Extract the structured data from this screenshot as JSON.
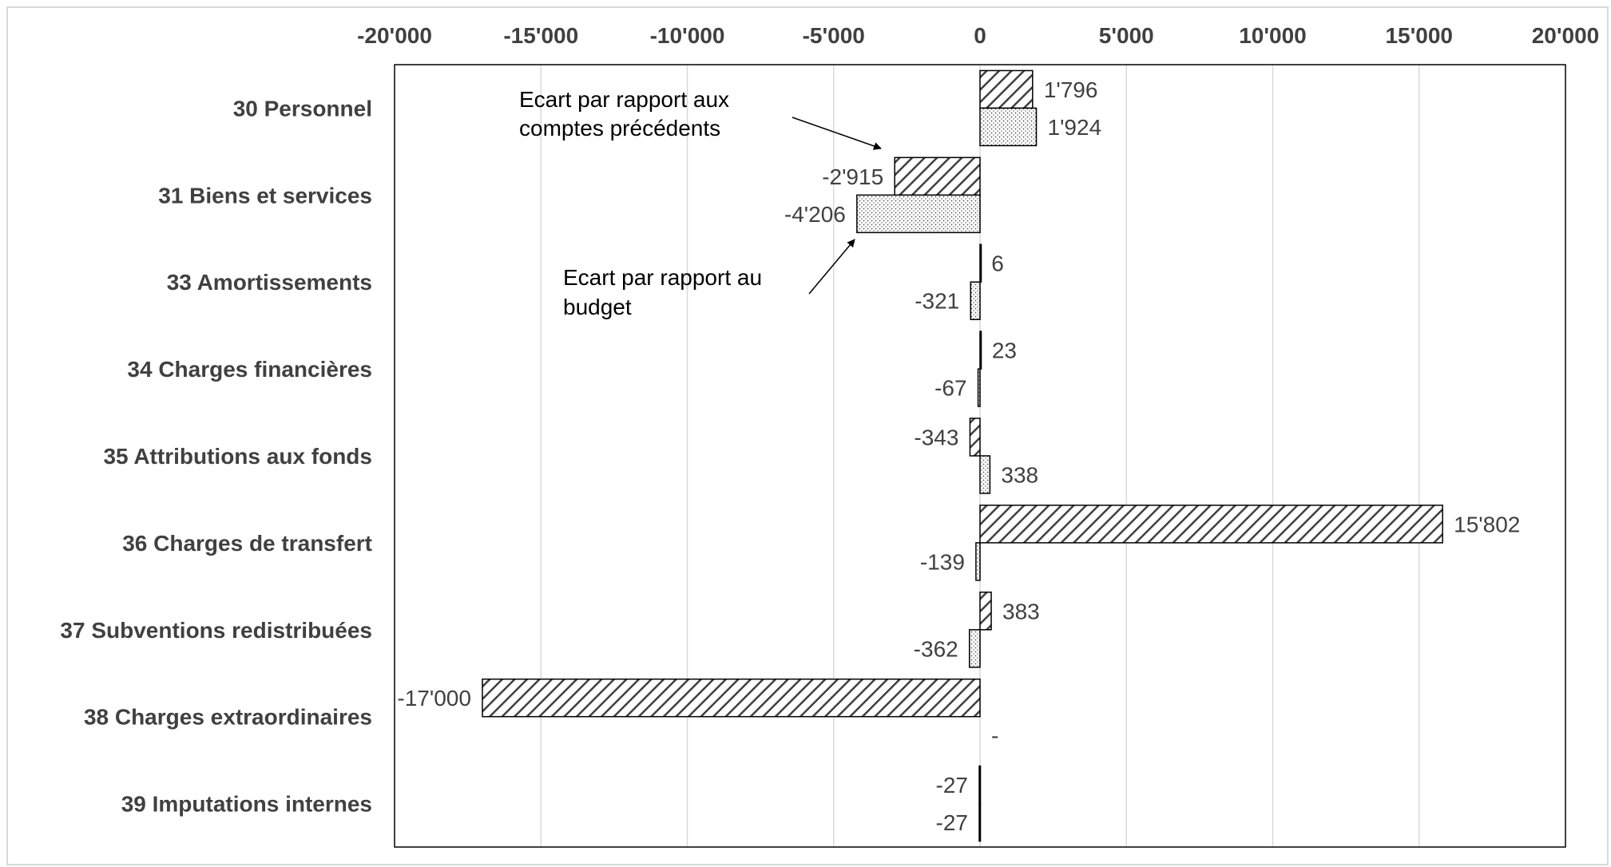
{
  "chart_data": {
    "type": "bar",
    "orientation": "horizontal",
    "categories": [
      "30 Personnel",
      "31 Biens et services",
      "33 Amortissements",
      "34 Charges financières",
      "35 Attributions aux fonds ",
      "36 Charges de transfert",
      "37 Subventions redistribuées",
      "38 Charges extraordinaires",
      "39 Imputations internes"
    ],
    "series": [
      {
        "values": [
          1796,
          -2915,
          6,
          23,
          -343,
          15802,
          383,
          -17000,
          -27
        ],
        "labels": [
          "1'796",
          "-2'915",
          "6",
          "23",
          "-343",
          "15'802",
          "383",
          "-17'000",
          "-27"
        ],
        "pattern": "diagonal-hatch"
      },
      {
        "values": [
          1924,
          -4206,
          -321,
          -67,
          338,
          -139,
          -362,
          0,
          -27
        ],
        "labels": [
          "1'924",
          "-4'206",
          "-321",
          "-67",
          "338",
          "-139",
          "-362",
          "-",
          "-27"
        ],
        "pattern": "dotted"
      }
    ],
    "xlim": [
      -20000,
      20000
    ],
    "xticks": [
      -20000,
      -15000,
      -10000,
      -5000,
      0,
      5000,
      10000,
      15000,
      20000
    ],
    "xtick_labels": [
      "-20'000",
      "-15'000",
      "-10'000",
      "-5'000",
      "0",
      "5'000",
      "10'000",
      "15'000",
      "20'000"
    ],
    "xaxis_position": "top",
    "grid": true,
    "legend": null,
    "annotations": [
      {
        "lines": [
          "Ecart par rapport aux",
          "comptes précédents"
        ],
        "points_to": "series-1"
      },
      {
        "lines": [
          "Ecart par rapport  au",
          "budget"
        ],
        "points_to": "series-2"
      }
    ],
    "colors": {
      "gridline": "#d9d9d9",
      "bar_stroke": "#000000",
      "text": "#404040",
      "frame": "#000000",
      "outer_border": "#d9d9d9"
    }
  }
}
